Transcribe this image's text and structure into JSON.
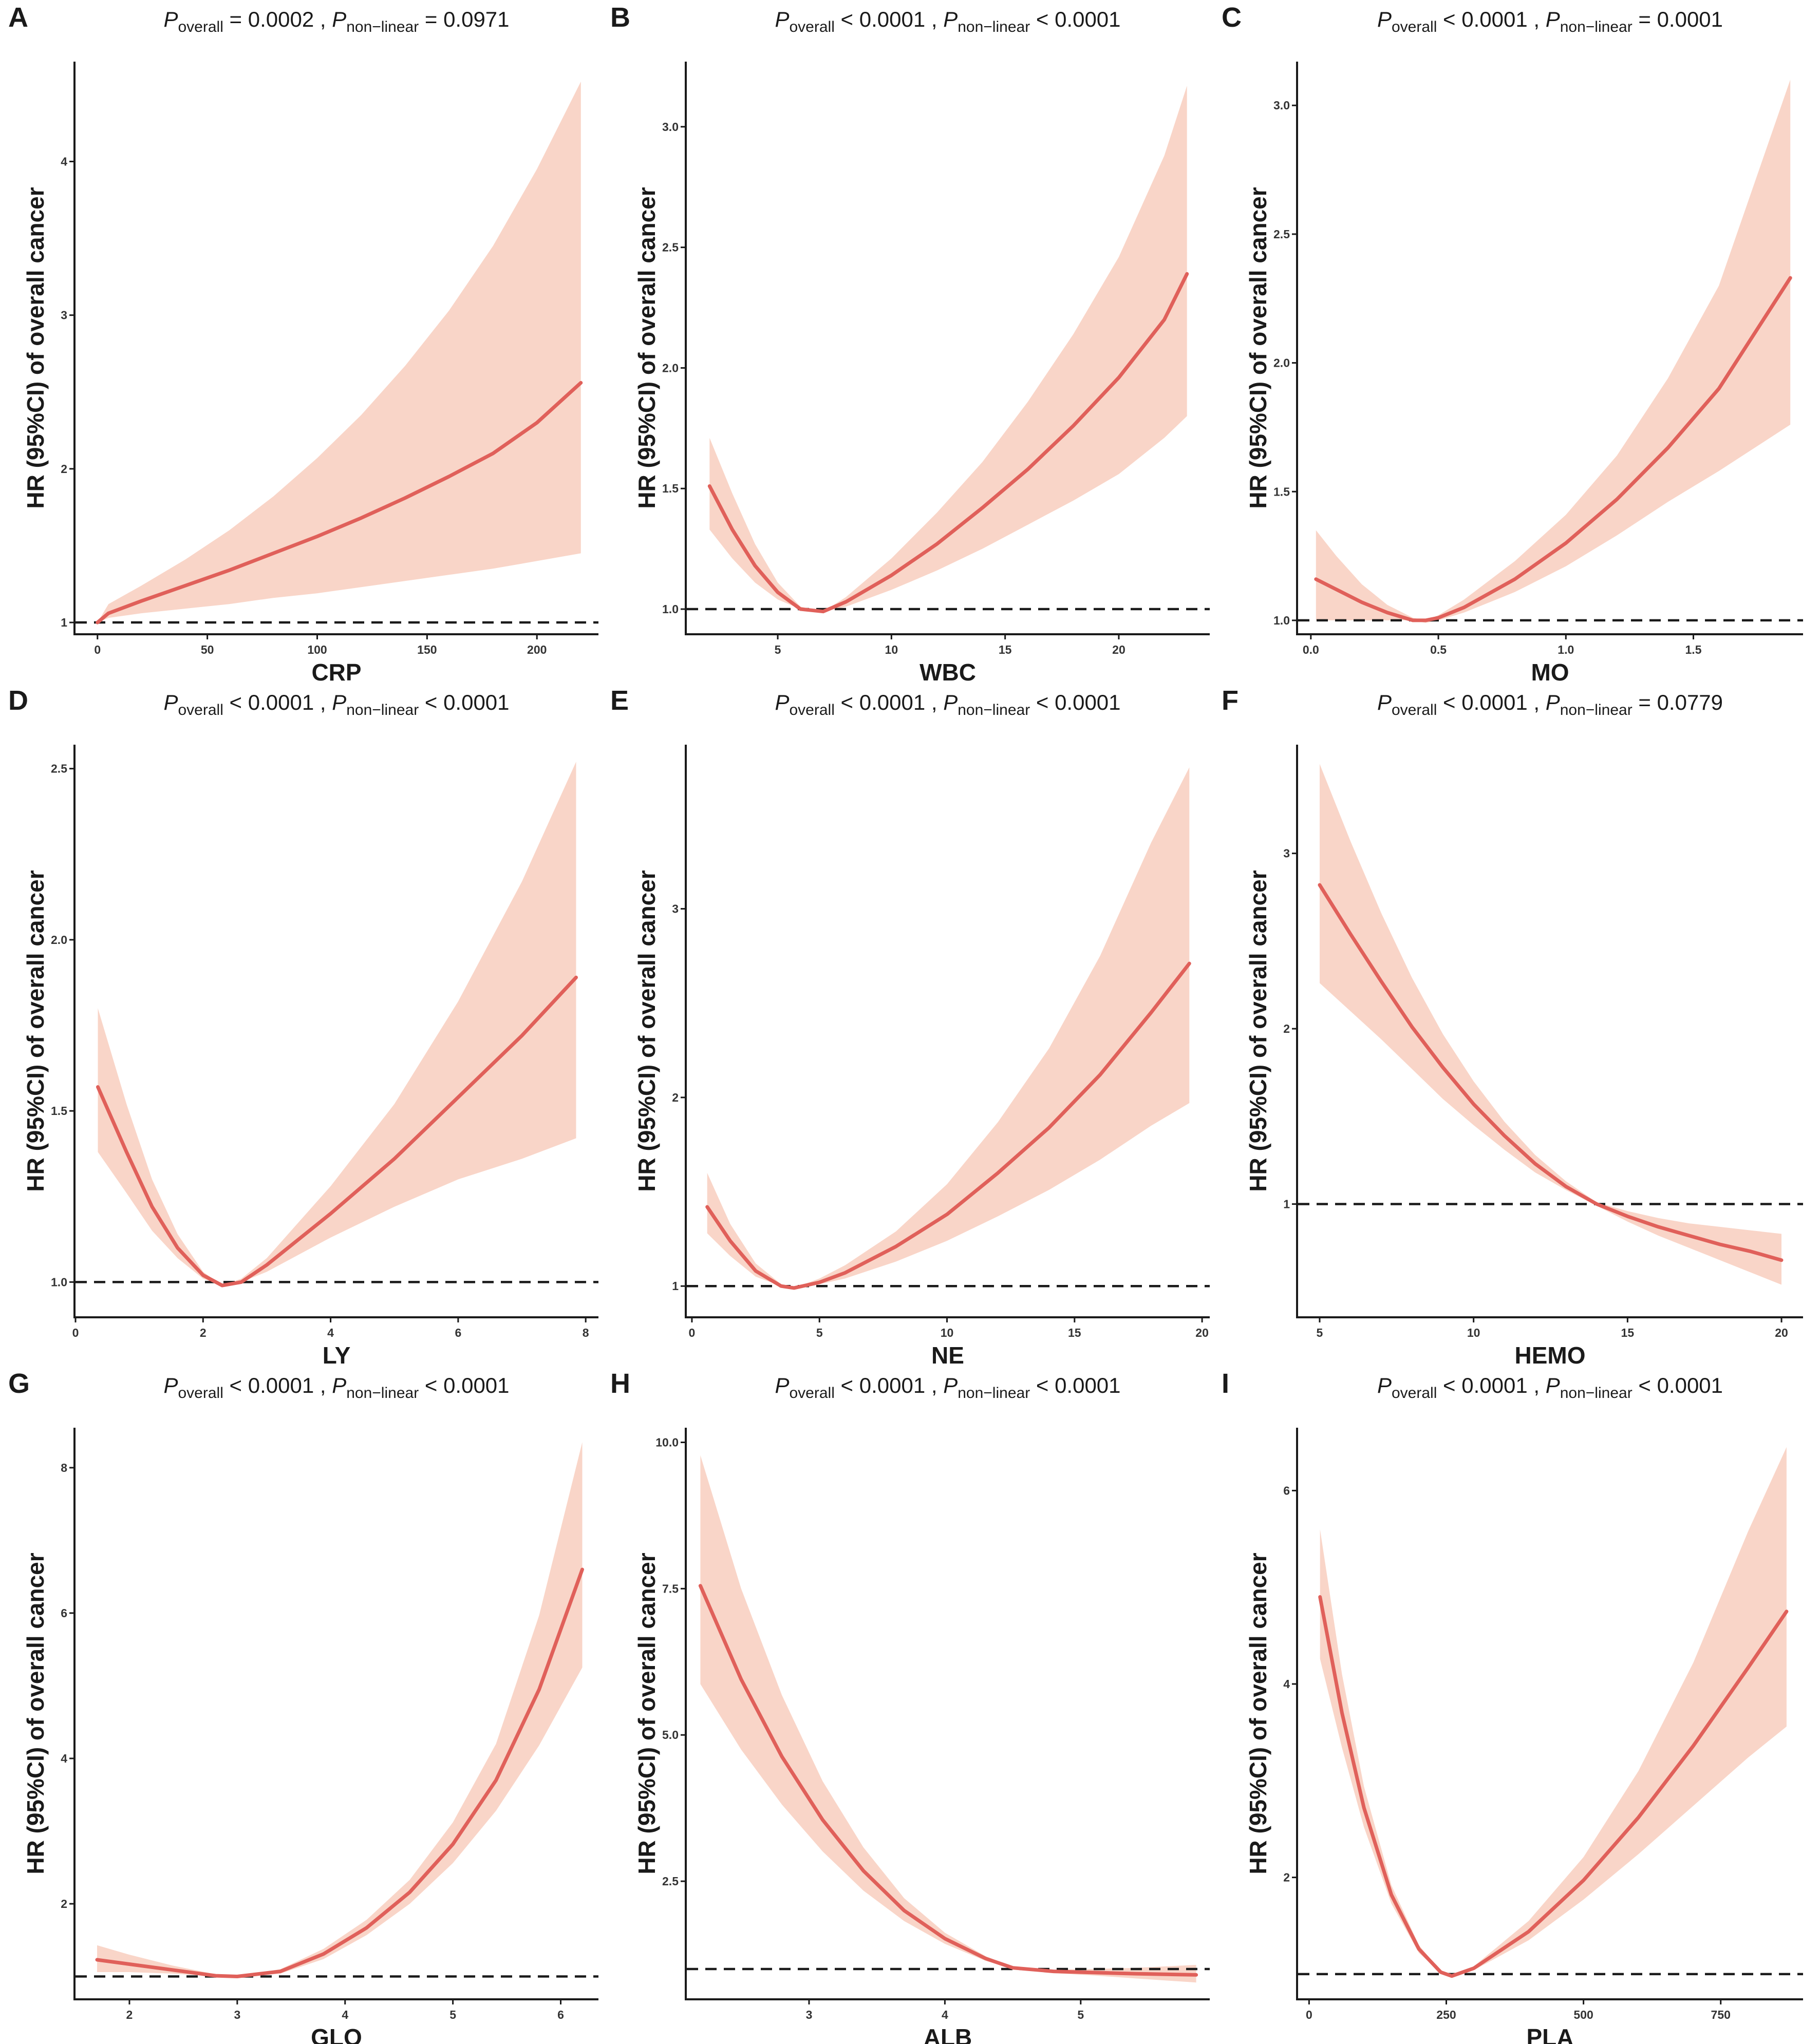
{
  "figure": {
    "colors": {
      "band": "#f9d5c8",
      "curve": "#e0605a",
      "axis": "#1a1a1a"
    }
  },
  "chart_data": [
    {
      "type": "line",
      "panel": "A",
      "xlabel": "CRP",
      "ylabel": "HR (95%CI) of overall cancer",
      "title": {
        "p_overall_sub": "overall",
        "p_overall_op": "=",
        "p_overall_val": "0.0002",
        "p_nonlinear_sub": "non−linear",
        "p_nonlinear_op": "=",
        "p_nonlinear_val": "0.0971"
      },
      "xlim": [
        -10,
        228
      ],
      "ylim": [
        0.93,
        4.65
      ],
      "xticks": [
        {
          "v": 0,
          "label": "0"
        },
        {
          "v": 50,
          "label": "50"
        },
        {
          "v": 100,
          "label": "100"
        },
        {
          "v": 150,
          "label": "150"
        },
        {
          "v": 200,
          "label": "200"
        }
      ],
      "yticks": [
        {
          "v": 1,
          "label": "1"
        },
        {
          "v": 2,
          "label": "2"
        },
        {
          "v": 3,
          "label": "3"
        },
        {
          "v": 4,
          "label": "4"
        }
      ],
      "ref": 1,
      "xrange": [
        0,
        220
      ],
      "x": [
        0,
        5,
        20,
        40,
        60,
        80,
        100,
        120,
        140,
        160,
        180,
        200,
        220
      ],
      "hr": [
        1.0,
        1.06,
        1.14,
        1.24,
        1.34,
        1.45,
        1.56,
        1.68,
        1.81,
        1.95,
        2.1,
        2.3,
        2.56
      ],
      "lower": [
        1.0,
        1.03,
        1.06,
        1.09,
        1.12,
        1.16,
        1.19,
        1.23,
        1.27,
        1.31,
        1.35,
        1.4,
        1.45
      ],
      "upper": [
        1.0,
        1.12,
        1.24,
        1.41,
        1.6,
        1.82,
        2.07,
        2.35,
        2.67,
        3.03,
        3.45,
        3.95,
        4.52
      ]
    },
    {
      "type": "line",
      "panel": "B",
      "xlabel": "WBC",
      "ylabel": "HR (95%CI) of overall cancer",
      "title": {
        "p_overall_sub": "overall",
        "p_overall_op": "<",
        "p_overall_val": "0.0001",
        "p_nonlinear_sub": "non−linear",
        "p_nonlinear_op": "<",
        "p_nonlinear_val": "0.0001"
      },
      "xlim": [
        1.0,
        24.0
      ],
      "ylim": [
        0.9,
        3.27
      ],
      "xticks": [
        {
          "v": 5,
          "label": "5"
        },
        {
          "v": 10,
          "label": "10"
        },
        {
          "v": 15,
          "label": "15"
        },
        {
          "v": 20,
          "label": "20"
        }
      ],
      "yticks": [
        {
          "v": 1.0,
          "label": "1.0"
        },
        {
          "v": 1.5,
          "label": "1.5"
        },
        {
          "v": 2.0,
          "label": "2.0"
        },
        {
          "v": 2.5,
          "label": "2.5"
        },
        {
          "v": 3.0,
          "label": "3.0"
        }
      ],
      "ref": 1.0,
      "xrange": [
        2,
        23
      ],
      "x": [
        2,
        3,
        4,
        5,
        6,
        7,
        8,
        10,
        12,
        14,
        16,
        18,
        20,
        22,
        23
      ],
      "hr": [
        1.51,
        1.33,
        1.18,
        1.07,
        1.0,
        0.99,
        1.03,
        1.14,
        1.27,
        1.42,
        1.58,
        1.76,
        1.96,
        2.2,
        2.39
      ],
      "lower": [
        1.33,
        1.21,
        1.11,
        1.04,
        1.0,
        0.99,
        1.01,
        1.08,
        1.16,
        1.25,
        1.35,
        1.45,
        1.56,
        1.71,
        1.8
      ],
      "upper": [
        1.71,
        1.48,
        1.27,
        1.11,
        1.01,
        0.99,
        1.05,
        1.21,
        1.4,
        1.61,
        1.86,
        2.14,
        2.46,
        2.88,
        3.17
      ]
    },
    {
      "type": "line",
      "panel": "C",
      "xlabel": "MO",
      "ylabel": "HR (95%CI) of overall cancer",
      "title": {
        "p_overall_sub": "overall",
        "p_overall_op": "<",
        "p_overall_val": "0.0001",
        "p_nonlinear_sub": "non−linear",
        "p_nonlinear_op": "=",
        "p_nonlinear_val": "0.0001"
      },
      "xlim": [
        -0.05,
        1.93
      ],
      "ylim": [
        0.95,
        3.17
      ],
      "xticks": [
        {
          "v": 0.0,
          "label": "0.0"
        },
        {
          "v": 0.5,
          "label": "0.5"
        },
        {
          "v": 1.0,
          "label": "1.0"
        },
        {
          "v": 1.5,
          "label": "1.5"
        }
      ],
      "yticks": [
        {
          "v": 1.0,
          "label": "1.0"
        },
        {
          "v": 1.5,
          "label": "1.5"
        },
        {
          "v": 2.0,
          "label": "2.0"
        },
        {
          "v": 2.5,
          "label": "2.5"
        },
        {
          "v": 3.0,
          "label": "3.0"
        }
      ],
      "ref": 1.0,
      "xrange": [
        0.02,
        1.88
      ],
      "x": [
        0.02,
        0.1,
        0.2,
        0.3,
        0.4,
        0.45,
        0.5,
        0.6,
        0.8,
        1.0,
        1.2,
        1.4,
        1.6,
        1.88
      ],
      "hr": [
        1.16,
        1.12,
        1.07,
        1.03,
        1.0,
        1.0,
        1.01,
        1.05,
        1.16,
        1.3,
        1.47,
        1.67,
        1.9,
        2.33
      ],
      "lower": [
        1.0,
        1.0,
        1.0,
        1.0,
        1.0,
        0.99,
        1.0,
        1.03,
        1.11,
        1.21,
        1.33,
        1.46,
        1.58,
        1.76
      ],
      "upper": [
        1.35,
        1.25,
        1.14,
        1.06,
        1.01,
        1.0,
        1.02,
        1.08,
        1.23,
        1.41,
        1.64,
        1.94,
        2.3,
        3.1
      ]
    },
    {
      "type": "line",
      "panel": "D",
      "xlabel": "LY",
      "ylabel": "HR (95%CI) of overall cancer",
      "title": {
        "p_overall_sub": "overall",
        "p_overall_op": "<",
        "p_overall_val": "0.0001",
        "p_nonlinear_sub": "non−linear",
        "p_nonlinear_op": "<",
        "p_nonlinear_val": "0.0001"
      },
      "xlim": [
        0.0,
        8.2
      ],
      "ylim": [
        0.9,
        2.57
      ],
      "xticks": [
        {
          "v": 0,
          "label": "0"
        },
        {
          "v": 2,
          "label": "2"
        },
        {
          "v": 4,
          "label": "4"
        },
        {
          "v": 6,
          "label": "6"
        },
        {
          "v": 8,
          "label": "8"
        }
      ],
      "yticks": [
        {
          "v": 1.0,
          "label": "1.0"
        },
        {
          "v": 1.5,
          "label": "1.5"
        },
        {
          "v": 2.0,
          "label": "2.0"
        },
        {
          "v": 2.5,
          "label": "2.5"
        }
      ],
      "ref": 1.0,
      "xrange": [
        0.35,
        7.85
      ],
      "x": [
        0.35,
        0.8,
        1.2,
        1.6,
        2.0,
        2.3,
        2.6,
        3.0,
        4.0,
        5.0,
        6.0,
        7.0,
        7.85
      ],
      "hr": [
        1.57,
        1.38,
        1.22,
        1.1,
        1.02,
        0.99,
        1.0,
        1.05,
        1.2,
        1.36,
        1.54,
        1.72,
        1.89
      ],
      "lower": [
        1.38,
        1.26,
        1.15,
        1.07,
        1.01,
        0.99,
        1.0,
        1.03,
        1.13,
        1.22,
        1.3,
        1.36,
        1.42
      ],
      "upper": [
        1.8,
        1.52,
        1.3,
        1.14,
        1.03,
        0.99,
        1.01,
        1.07,
        1.28,
        1.52,
        1.82,
        2.17,
        2.52
      ]
    },
    {
      "type": "line",
      "panel": "E",
      "xlabel": "NE",
      "ylabel": "HR (95%CI) of overall cancer",
      "title": {
        "p_overall_sub": "overall",
        "p_overall_op": "<",
        "p_overall_val": "0.0001",
        "p_nonlinear_sub": "non−linear",
        "p_nonlinear_op": "<",
        "p_nonlinear_val": "0.0001"
      },
      "xlim": [
        -0.2,
        20.3
      ],
      "ylim": [
        0.84,
        3.87
      ],
      "xticks": [
        {
          "v": 0,
          "label": "0"
        },
        {
          "v": 5,
          "label": "5"
        },
        {
          "v": 10,
          "label": "10"
        },
        {
          "v": 15,
          "label": "15"
        },
        {
          "v": 20,
          "label": "20"
        }
      ],
      "yticks": [
        {
          "v": 1,
          "label": "1"
        },
        {
          "v": 2,
          "label": "2"
        },
        {
          "v": 3,
          "label": "3"
        }
      ],
      "ref": 1,
      "xrange": [
        0.6,
        19.5
      ],
      "x": [
        0.6,
        1.5,
        2.5,
        3.5,
        4.0,
        5.0,
        6.0,
        8.0,
        10.0,
        12.0,
        14.0,
        16.0,
        18.0,
        19.5
      ],
      "hr": [
        1.42,
        1.24,
        1.08,
        1.0,
        0.99,
        1.02,
        1.07,
        1.21,
        1.38,
        1.6,
        1.84,
        2.12,
        2.45,
        2.71
      ],
      "lower": [
        1.28,
        1.16,
        1.05,
        1.0,
        0.99,
        1.01,
        1.04,
        1.13,
        1.24,
        1.37,
        1.51,
        1.67,
        1.85,
        1.97
      ],
      "upper": [
        1.6,
        1.33,
        1.12,
        1.01,
        0.99,
        1.04,
        1.11,
        1.29,
        1.54,
        1.87,
        2.26,
        2.75,
        3.35,
        3.75
      ]
    },
    {
      "type": "line",
      "panel": "F",
      "xlabel": "HEMO",
      "ylabel": "HR (95%CI) of overall cancer",
      "title": {
        "p_overall_sub": "overall",
        "p_overall_op": "<",
        "p_overall_val": "0.0001",
        "p_nonlinear_sub": "non−linear",
        "p_nonlinear_op": "=",
        "p_nonlinear_val": "0.0779"
      },
      "xlim": [
        4.3,
        20.7
      ],
      "ylim": [
        0.36,
        3.62
      ],
      "xticks": [
        {
          "v": 5,
          "label": "5"
        },
        {
          "v": 10,
          "label": "10"
        },
        {
          "v": 15,
          "label": "15"
        },
        {
          "v": 20,
          "label": "20"
        }
      ],
      "yticks": [
        {
          "v": 1,
          "label": "1"
        },
        {
          "v": 2,
          "label": "2"
        },
        {
          "v": 3,
          "label": "3"
        }
      ],
      "ref": 1,
      "xrange": [
        5,
        20
      ],
      "x": [
        5,
        6,
        7,
        8,
        9,
        10,
        11,
        12,
        13,
        14,
        15,
        16,
        17,
        18,
        19,
        20
      ],
      "hr": [
        2.82,
        2.54,
        2.27,
        2.01,
        1.78,
        1.57,
        1.39,
        1.23,
        1.1,
        1.0,
        0.93,
        0.87,
        0.82,
        0.77,
        0.73,
        0.68
      ],
      "lower": [
        2.26,
        2.1,
        1.94,
        1.77,
        1.6,
        1.45,
        1.31,
        1.18,
        1.08,
        0.99,
        0.9,
        0.82,
        0.75,
        0.68,
        0.61,
        0.54
      ],
      "upper": [
        3.51,
        3.07,
        2.66,
        2.29,
        1.97,
        1.7,
        1.47,
        1.28,
        1.13,
        1.01,
        0.96,
        0.92,
        0.89,
        0.87,
        0.85,
        0.83
      ]
    },
    {
      "type": "line",
      "panel": "G",
      "xlabel": "GLO",
      "ylabel": "HR (95%CI) of overall cancer",
      "title": {
        "p_overall_sub": "overall",
        "p_overall_op": "<",
        "p_overall_val": "0.0001",
        "p_nonlinear_sub": "non−linear",
        "p_nonlinear_op": "<",
        "p_nonlinear_val": "0.0001"
      },
      "xlim": [
        1.5,
        6.35
      ],
      "ylim": [
        0.7,
        8.55
      ],
      "xticks": [
        {
          "v": 2,
          "label": "2"
        },
        {
          "v": 3,
          "label": "3"
        },
        {
          "v": 4,
          "label": "4"
        },
        {
          "v": 5,
          "label": "5"
        },
        {
          "v": 6,
          "label": "6"
        }
      ],
      "yticks": [
        {
          "v": 2,
          "label": "2"
        },
        {
          "v": 4,
          "label": "4"
        },
        {
          "v": 6,
          "label": "6"
        },
        {
          "v": 8,
          "label": "8"
        }
      ],
      "ref": 1,
      "xrange": [
        1.7,
        6.2
      ],
      "x": [
        1.7,
        2.0,
        2.4,
        2.8,
        3.0,
        3.4,
        3.8,
        4.2,
        4.6,
        5.0,
        5.4,
        5.8,
        6.2
      ],
      "hr": [
        1.23,
        1.17,
        1.09,
        1.01,
        1.0,
        1.07,
        1.31,
        1.67,
        2.16,
        2.82,
        3.7,
        4.95,
        6.6
      ],
      "lower": [
        1.06,
        1.06,
        1.04,
        1.0,
        0.99,
        1.04,
        1.24,
        1.57,
        2.0,
        2.56,
        3.28,
        4.18,
        5.25
      ],
      "upper": [
        1.43,
        1.3,
        1.15,
        1.03,
        1.01,
        1.1,
        1.38,
        1.78,
        2.33,
        3.12,
        4.2,
        5.97,
        8.35
      ]
    },
    {
      "type": "line",
      "panel": "H",
      "xlabel": "ALB",
      "ylabel": "HR (95%CI) of overall cancer",
      "title": {
        "p_overall_sub": "overall",
        "p_overall_op": "<",
        "p_overall_val": "0.0001",
        "p_nonlinear_sub": "non−linear",
        "p_nonlinear_op": "<",
        "p_nonlinear_val": "0.0001"
      },
      "xlim": [
        2.1,
        5.95
      ],
      "ylim": [
        0.5,
        10.25
      ],
      "xticks": [
        {
          "v": 3,
          "label": "3"
        },
        {
          "v": 4,
          "label": "4"
        },
        {
          "v": 5,
          "label": "5"
        }
      ],
      "yticks": [
        {
          "v": 2.5,
          "label": "2.5"
        },
        {
          "v": 5.0,
          "label": "5.0"
        },
        {
          "v": 7.5,
          "label": "7.5"
        },
        {
          "v": 10.0,
          "label": "10.0"
        }
      ],
      "ref": 1.0,
      "xrange": [
        2.2,
        5.85
      ],
      "x": [
        2.2,
        2.5,
        2.8,
        3.1,
        3.4,
        3.7,
        4.0,
        4.3,
        4.5,
        4.8,
        5.1,
        5.4,
        5.85
      ],
      "hr": [
        7.55,
        5.95,
        4.63,
        3.55,
        2.68,
        2.0,
        1.52,
        1.18,
        1.02,
        0.96,
        0.94,
        0.92,
        0.9
      ],
      "lower": [
        5.87,
        4.75,
        3.81,
        3.01,
        2.34,
        1.82,
        1.43,
        1.14,
        1.0,
        0.93,
        0.89,
        0.84,
        0.77
      ],
      "upper": [
        9.78,
        7.5,
        5.68,
        4.21,
        3.08,
        2.21,
        1.62,
        1.22,
        1.04,
        0.99,
        1.0,
        1.02,
        1.07
      ]
    },
    {
      "type": "line",
      "panel": "I",
      "xlabel": "PLA",
      "ylabel": "HR (95%CI) of overall cancer",
      "title": {
        "p_overall_sub": "overall",
        "p_overall_op": "<",
        "p_overall_val": "0.0001",
        "p_nonlinear_sub": "non−linear",
        "p_nonlinear_op": "<",
        "p_nonlinear_val": "0.0001"
      },
      "xlim": [
        -20,
        900
      ],
      "ylim": [
        0.75,
        6.65
      ],
      "xticks": [
        {
          "v": 0,
          "label": "0"
        },
        {
          "v": 250,
          "label": "250"
        },
        {
          "v": 500,
          "label": "500"
        },
        {
          "v": 750,
          "label": "750"
        }
      ],
      "yticks": [
        {
          "v": 2,
          "label": "2"
        },
        {
          "v": 4,
          "label": "4"
        },
        {
          "v": 6,
          "label": "6"
        }
      ],
      "ref": 1,
      "xrange": [
        20,
        870
      ],
      "x": [
        20,
        60,
        100,
        150,
        200,
        240,
        260,
        300,
        400,
        500,
        600,
        700,
        800,
        870
      ],
      "hr": [
        4.9,
        3.7,
        2.72,
        1.82,
        1.26,
        1.02,
        0.98,
        1.06,
        1.44,
        1.97,
        2.62,
        3.36,
        4.17,
        4.75
      ],
      "lower": [
        4.26,
        3.34,
        2.52,
        1.73,
        1.22,
        1.01,
        0.98,
        1.04,
        1.35,
        1.77,
        2.24,
        2.74,
        3.24,
        3.56
      ],
      "upper": [
        5.6,
        4.1,
        2.94,
        1.92,
        1.3,
        1.03,
        0.98,
        1.08,
        1.55,
        2.21,
        3.1,
        4.22,
        5.58,
        6.45
      ]
    }
  ]
}
